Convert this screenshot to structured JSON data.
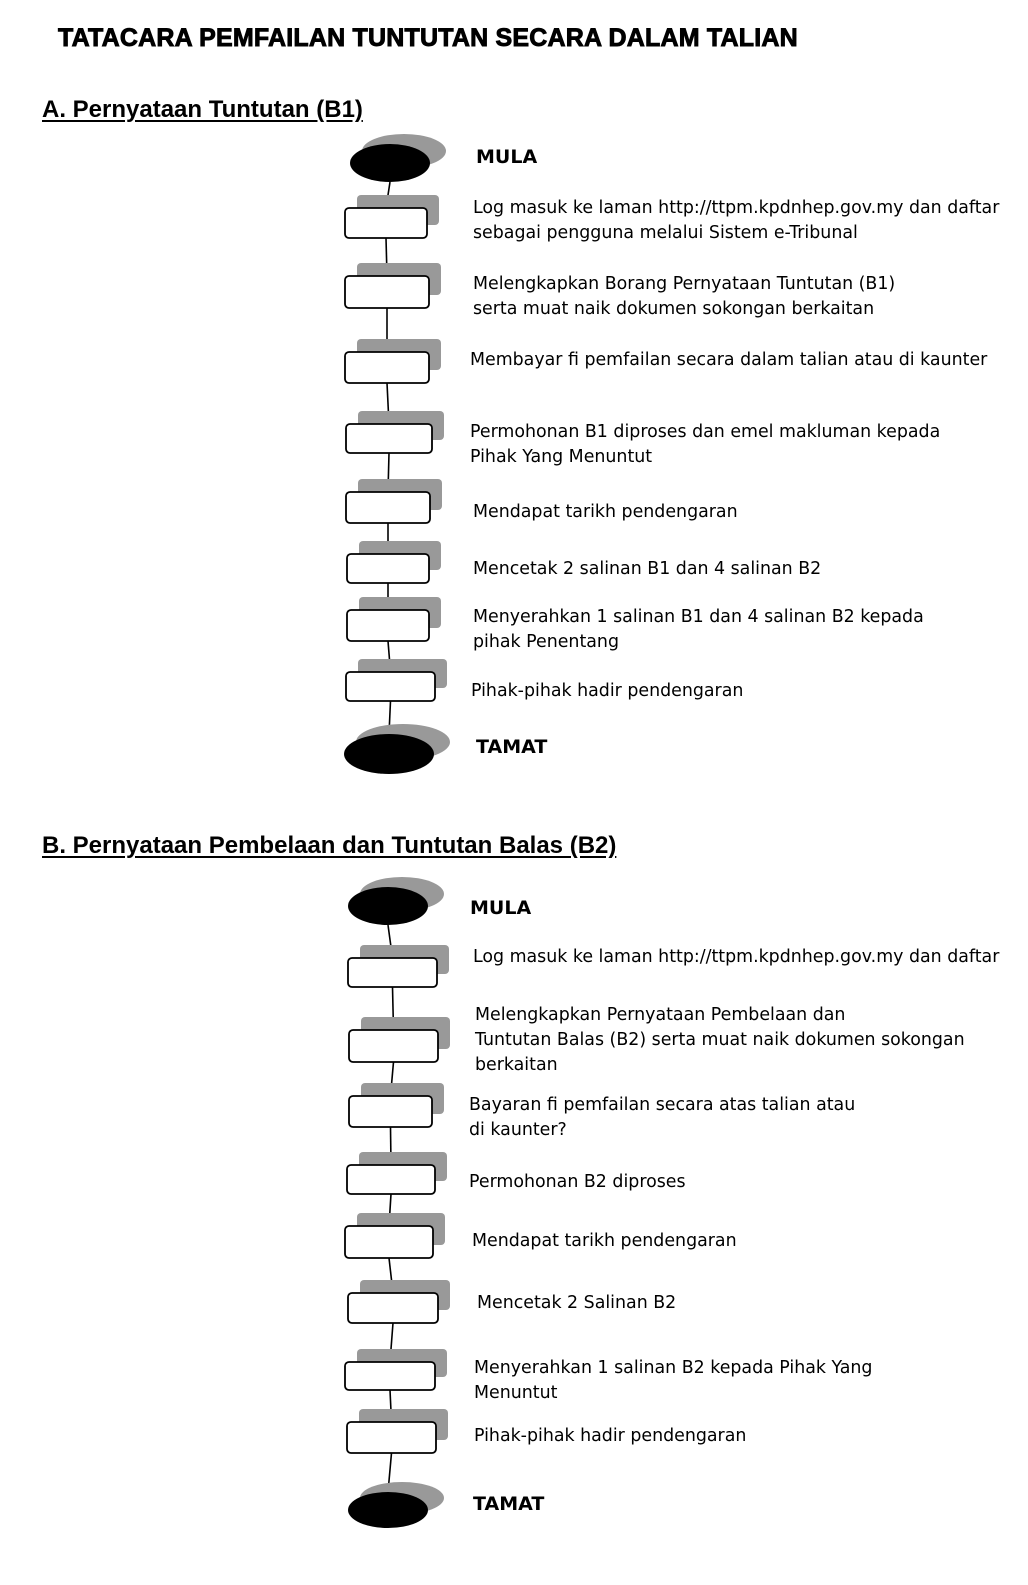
{
  "document": {
    "title": "TATACARA PEMFAILAN TUNTUTAN SECARA DALAM TALIAN"
  },
  "sections": [
    {
      "heading": "A. Pernyataan Tuntutan (B1)",
      "start_label": "MULA",
      "end_label": "TAMAT",
      "steps": [
        {
          "lines": [
            "Log masuk ke laman http://ttpm.kpdnhep.gov.my dan daftar",
            "sebagai pengguna melalui Sistem e-Tribunal"
          ]
        },
        {
          "lines": [
            "Melengkapkan Borang Pernyataan Tuntutan (B1)",
            "serta muat naik dokumen sokongan berkaitan"
          ]
        },
        {
          "lines": [
            "Membayar fi pemfailan secara dalam talian atau di kaunter"
          ]
        },
        {
          "lines": [
            "Permohonan B1 diproses dan emel makluman kepada",
            "Pihak Yang Menuntut"
          ]
        },
        {
          "lines": [
            "Mendapat tarikh pendengaran"
          ]
        },
        {
          "lines": [
            "Mencetak 2 salinan B1 dan 4 salinan B2"
          ]
        },
        {
          "lines": [
            "Menyerahkan 1 salinan B1 dan 4 salinan B2 kepada",
            "pihak Penentang"
          ]
        },
        {
          "lines": [
            "Pihak-pihak hadir pendengaran"
          ]
        }
      ]
    },
    {
      "heading": "B. Pernyataan Pembelaan dan Tuntutan Balas (B2)",
      "start_label": "MULA",
      "end_label": "TAMAT",
      "steps": [
        {
          "lines": [
            "Log masuk ke laman http://ttpm.kpdnhep.gov.my dan daftar"
          ]
        },
        {
          "lines": [
            "Melengkapkan Pernyataan Pembelaan dan",
            "Tuntutan Balas (B2) serta muat naik dokumen sokongan",
            "berkaitan"
          ]
        },
        {
          "lines": [
            "Bayaran fi pemfailan secara atas talian atau",
            "di kaunter?"
          ]
        },
        {
          "lines": [
            "Permohonan B2 diproses"
          ]
        },
        {
          "lines": [
            "Mendapat tarikh pendengaran"
          ]
        },
        {
          "lines": [
            "Mencetak 2 Salinan B2"
          ]
        },
        {
          "lines": [
            "Menyerahkan 1 salinan B2 kepada Pihak Yang",
            "Menuntut"
          ]
        },
        {
          "lines": [
            "Pihak-pihak hadir pendengaran"
          ]
        }
      ]
    }
  ],
  "colors": {
    "shadow": "#999999",
    "terminal_fill": "#000000",
    "box_fill": "#ffffff",
    "stroke": "#000000"
  }
}
